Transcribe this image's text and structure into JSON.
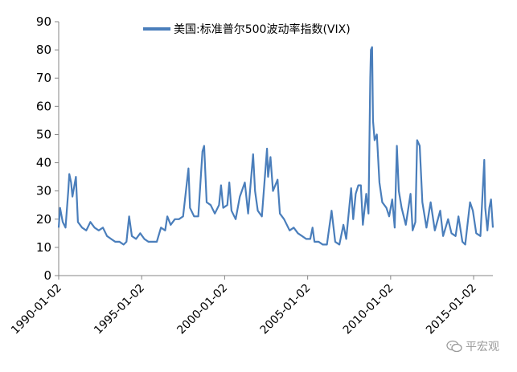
{
  "chart_data": {
    "type": "line",
    "title": "",
    "xlabel": "",
    "ylabel": "",
    "ylim": [
      0,
      90
    ],
    "yticks": [
      0,
      10,
      20,
      30,
      40,
      50,
      60,
      70,
      80,
      90
    ],
    "xticks": [
      "1990-01-02",
      "1995-01-02",
      "2000-01-02",
      "2005-01-02",
      "2010-01-02",
      "2015-01-02"
    ],
    "grid": false,
    "legend_position": "top-center",
    "series": [
      {
        "name": "美国:标准普尔500波动率指数(VIX)",
        "color": "#4a7ebb",
        "points": [
          [
            "1990-01-02",
            17
          ],
          [
            "1990-02-01",
            24
          ],
          [
            "1990-04-01",
            19
          ],
          [
            "1990-06-01",
            17
          ],
          [
            "1990-08-01",
            30
          ],
          [
            "1990-08-24",
            36
          ],
          [
            "1990-10-01",
            33
          ],
          [
            "1990-11-01",
            28
          ],
          [
            "1991-01-15",
            35
          ],
          [
            "1991-03-01",
            19
          ],
          [
            "1991-06-01",
            17
          ],
          [
            "1991-09-01",
            16
          ],
          [
            "1991-12-01",
            19
          ],
          [
            "1992-03-01",
            17
          ],
          [
            "1992-06-01",
            16
          ],
          [
            "1992-09-01",
            17
          ],
          [
            "1992-12-01",
            14
          ],
          [
            "1993-03-01",
            13
          ],
          [
            "1993-06-01",
            12
          ],
          [
            "1993-09-01",
            12
          ],
          [
            "1993-12-01",
            11
          ],
          [
            "1994-02-01",
            12
          ],
          [
            "1994-04-01",
            21
          ],
          [
            "1994-06-01",
            14
          ],
          [
            "1994-09-01",
            13
          ],
          [
            "1994-12-01",
            15
          ],
          [
            "1995-03-01",
            13
          ],
          [
            "1995-06-01",
            12
          ],
          [
            "1995-09-01",
            12
          ],
          [
            "1995-12-01",
            12
          ],
          [
            "1996-03-01",
            17
          ],
          [
            "1996-06-01",
            16
          ],
          [
            "1996-07-20",
            21
          ],
          [
            "1996-10-01",
            18
          ],
          [
            "1997-01-01",
            20
          ],
          [
            "1997-04-01",
            20
          ],
          [
            "1997-07-01",
            21
          ],
          [
            "1997-10-28",
            38
          ],
          [
            "1997-12-01",
            24
          ],
          [
            "1998-03-01",
            21
          ],
          [
            "1998-06-01",
            21
          ],
          [
            "1998-08-31",
            44
          ],
          [
            "1998-10-08",
            46
          ],
          [
            "1998-12-01",
            26
          ],
          [
            "1999-03-01",
            25
          ],
          [
            "1999-06-01",
            22
          ],
          [
            "1999-09-01",
            25
          ],
          [
            "1999-10-15",
            32
          ],
          [
            "1999-12-01",
            24
          ],
          [
            "2000-03-01",
            25
          ],
          [
            "2000-04-14",
            33
          ],
          [
            "2000-06-01",
            23
          ],
          [
            "2000-09-01",
            20
          ],
          [
            "2000-12-01",
            28
          ],
          [
            "2001-03-22",
            33
          ],
          [
            "2001-06-01",
            22
          ],
          [
            "2001-09-20",
            43
          ],
          [
            "2001-11-01",
            30
          ],
          [
            "2002-01-01",
            23
          ],
          [
            "2002-04-01",
            21
          ],
          [
            "2002-07-23",
            45
          ],
          [
            "2002-08-15",
            35
          ],
          [
            "2002-10-07",
            42
          ],
          [
            "2002-12-01",
            30
          ],
          [
            "2003-03-11",
            34
          ],
          [
            "2003-05-01",
            22
          ],
          [
            "2003-08-01",
            20
          ],
          [
            "2003-12-01",
            16
          ],
          [
            "2004-03-01",
            17
          ],
          [
            "2004-06-01",
            15
          ],
          [
            "2004-09-01",
            14
          ],
          [
            "2004-12-01",
            13
          ],
          [
            "2005-03-01",
            13
          ],
          [
            "2005-04-20",
            17
          ],
          [
            "2005-06-01",
            12
          ],
          [
            "2005-09-01",
            12
          ],
          [
            "2005-12-01",
            11
          ],
          [
            "2006-03-01",
            11
          ],
          [
            "2006-06-13",
            23
          ],
          [
            "2006-09-01",
            12
          ],
          [
            "2006-12-01",
            11
          ],
          [
            "2007-02-27",
            18
          ],
          [
            "2007-05-01",
            13
          ],
          [
            "2007-08-16",
            31
          ],
          [
            "2007-10-01",
            20
          ],
          [
            "2007-11-26",
            29
          ],
          [
            "2008-01-22",
            32
          ],
          [
            "2008-03-17",
            32
          ],
          [
            "2008-05-01",
            18
          ],
          [
            "2008-07-15",
            29
          ],
          [
            "2008-09-01",
            22
          ],
          [
            "2008-10-10",
            70
          ],
          [
            "2008-10-24",
            80
          ],
          [
            "2008-11-20",
            81
          ],
          [
            "2008-12-10",
            55
          ],
          [
            "2009-01-15",
            48
          ],
          [
            "2009-03-05",
            50
          ],
          [
            "2009-05-01",
            33
          ],
          [
            "2009-07-01",
            26
          ],
          [
            "2009-10-01",
            24
          ],
          [
            "2009-12-01",
            21
          ],
          [
            "2010-02-05",
            27
          ],
          [
            "2010-04-01",
            17
          ],
          [
            "2010-05-20",
            46
          ],
          [
            "2010-07-01",
            30
          ],
          [
            "2010-09-01",
            24
          ],
          [
            "2010-12-01",
            18
          ],
          [
            "2011-03-16",
            29
          ],
          [
            "2011-05-01",
            16
          ],
          [
            "2011-07-01",
            19
          ],
          [
            "2011-08-08",
            48
          ],
          [
            "2011-10-03",
            46
          ],
          [
            "2011-12-01",
            26
          ],
          [
            "2012-03-01",
            17
          ],
          [
            "2012-06-01",
            26
          ],
          [
            "2012-09-01",
            16
          ],
          [
            "2012-12-28",
            23
          ],
          [
            "2013-03-01",
            14
          ],
          [
            "2013-06-20",
            20
          ],
          [
            "2013-09-01",
            15
          ],
          [
            "2013-12-01",
            14
          ],
          [
            "2014-02-03",
            21
          ],
          [
            "2014-05-01",
            12
          ],
          [
            "2014-07-01",
            11
          ],
          [
            "2014-10-15",
            26
          ],
          [
            "2014-12-16",
            23
          ],
          [
            "2015-03-01",
            15
          ],
          [
            "2015-06-01",
            14
          ],
          [
            "2015-08-24",
            41
          ],
          [
            "2015-09-15",
            24
          ],
          [
            "2015-11-01",
            16
          ],
          [
            "2015-12-14",
            24
          ],
          [
            "2016-01-20",
            27
          ],
          [
            "2016-03-01",
            17
          ]
        ]
      }
    ]
  },
  "watermark": {
    "text": "平宏观",
    "icon": "wechat-icon"
  }
}
